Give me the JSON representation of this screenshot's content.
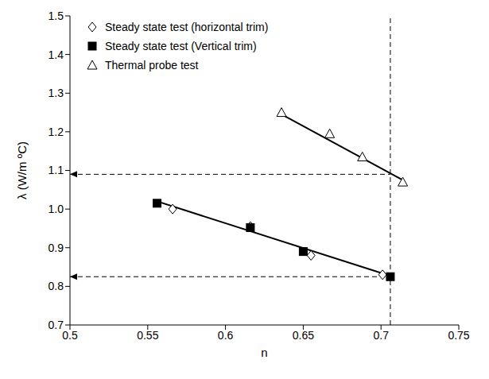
{
  "chart_data": {
    "type": "scatter",
    "x_label": "n",
    "y_label": "λ (W/m ºC)",
    "xlim": [
      0.5,
      0.75
    ],
    "xticks": [
      0.5,
      0.55,
      0.6,
      0.65,
      0.7,
      0.75
    ],
    "ylim": [
      0.7,
      1.5
    ],
    "yticks": [
      0.7,
      0.8,
      0.9,
      {
        "value": 1,
        "label": "1.0"
      },
      1.1,
      1.2,
      1.3,
      1.4,
      1.5
    ],
    "grid": false,
    "legend": "top-left",
    "series": [
      {
        "name": "Steady state test (horizontal trim)",
        "color": "#000000",
        "marker": "diamond-open",
        "x": [
          0.566,
          0.616,
          0.655,
          0.701
        ],
        "values": [
          1.0,
          0.955,
          0.88,
          0.83
        ]
      },
      {
        "name": "Steady state test (Vertical trim)",
        "color": "#000000",
        "marker": "square",
        "x": [
          0.556,
          0.616,
          0.65,
          0.706
        ],
        "values": [
          1.015,
          0.952,
          0.89,
          0.825
        ]
      },
      {
        "name": "Thermal probe test",
        "color": "#000000",
        "marker": "triangle-open",
        "x": [
          0.636,
          0.667,
          0.688,
          0.714
        ],
        "values": [
          1.25,
          1.195,
          1.135,
          1.07
        ]
      }
    ],
    "trend_lines": [
      {
        "color": "#000000",
        "x": [
          0.556,
          0.706
        ],
        "values": [
          1.02,
          0.827
        ]
      },
      {
        "color": "#000000",
        "x": [
          0.636,
          0.714
        ],
        "values": [
          1.245,
          1.075
        ]
      }
    ],
    "reference_lines": {
      "x": [
        0.706
      ],
      "y": [
        1.09,
        0.825
      ],
      "line_style": "dashed",
      "color": "#000000"
    }
  }
}
